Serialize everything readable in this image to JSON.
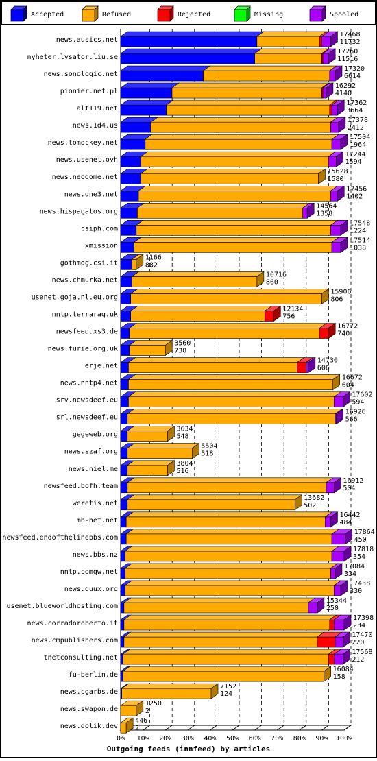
{
  "legend": [
    {
      "name": "Accepted",
      "color": "#0000ff",
      "top": "#3030ff",
      "side": "#00007f"
    },
    {
      "name": "Refused",
      "color": "#ffaa00",
      "top": "#ffbb33",
      "side": "#b07800"
    },
    {
      "name": "Rejected",
      "color": "#ff0000",
      "top": "#ff4040",
      "side": "#a00000"
    },
    {
      "name": "Missing",
      "color": "#00ff00",
      "top": "#40ff40",
      "side": "#00a000"
    },
    {
      "name": "Spooled",
      "color": "#aa00ff",
      "top": "#bb33ff",
      "side": "#6a00a0"
    }
  ],
  "chart_data": {
    "type": "bar",
    "orientation": "horizontal",
    "stacked": true,
    "title": "Outgoing feeds (innfeed) by articles",
    "xlim": [
      0,
      100
    ],
    "x_ticks": [
      "0%",
      "10%",
      "20%",
      "30%",
      "40%",
      "50%",
      "60%",
      "70%",
      "80%",
      "90%",
      "100%"
    ],
    "grid": "dashed vertical lines",
    "legend_position": "top",
    "series_names": [
      "Accepted",
      "Refused",
      "Rejected",
      "Missing",
      "Spooled"
    ],
    "rows": [
      {
        "name": "news.ausics.net",
        "total": "17468",
        "accepted": "11732",
        "segments": [
          61.0,
          28.0,
          1.0,
          0,
          4.0
        ]
      },
      {
        "name": "nyheter.lysator.liu.se",
        "total": "17260",
        "accepted": "11516",
        "segments": [
          60.0,
          30.0,
          0.5,
          0,
          2.5
        ]
      },
      {
        "name": "news.sonologic.net",
        "total": "17320",
        "accepted": "6614",
        "segments": [
          37.0,
          56.5,
          0,
          0,
          2.5
        ]
      },
      {
        "name": "pionier.net.pl",
        "total": "16292",
        "accepted": "4140",
        "segments": [
          23.0,
          67.0,
          0.5,
          0,
          1.5
        ]
      },
      {
        "name": "alt119.net",
        "total": "17362",
        "accepted": "3664",
        "segments": [
          20.5,
          73.0,
          1.0,
          0,
          2.5
        ]
      },
      {
        "name": "news.1d4.us",
        "total": "17378",
        "accepted": "2412",
        "segments": [
          13.5,
          80.5,
          0,
          0,
          3.5
        ]
      },
      {
        "name": "news.tomockey.net",
        "total": "17504",
        "accepted": "1964",
        "segments": [
          11.0,
          83.5,
          0,
          0,
          4.0
        ]
      },
      {
        "name": "news.usenet.ovh",
        "total": "17244",
        "accepted": "1594",
        "segments": [
          9.0,
          84.0,
          0,
          0,
          3.5
        ]
      },
      {
        "name": "news.neodome.net",
        "total": "15628",
        "accepted": "1580",
        "segments": [
          9.0,
          79.5,
          0,
          0,
          0
        ]
      },
      {
        "name": "news.dne3.net",
        "total": "17456",
        "accepted": "1402",
        "segments": [
          8.0,
          86.0,
          0,
          0,
          3.0
        ]
      },
      {
        "name": "news.hispagatos.org",
        "total": "14564",
        "accepted": "1358",
        "segments": [
          7.5,
          74.0,
          0,
          0,
          2.0
        ]
      },
      {
        "name": "csiph.com",
        "total": "17548",
        "accepted": "1224",
        "segments": [
          7.0,
          87.0,
          0,
          0,
          4.5
        ]
      },
      {
        "name": "xmission",
        "total": "17514",
        "accepted": "1038",
        "segments": [
          6.0,
          88.5,
          0,
          0,
          4.0
        ]
      },
      {
        "name": "gothmog.csi.it",
        "total": "1166",
        "accepted": "882",
        "segments": [
          5.0,
          2.0,
          0,
          0,
          0
        ]
      },
      {
        "name": "news.chmurka.net",
        "total": "10716",
        "accepted": "860",
        "segments": [
          5.0,
          56.0,
          0,
          0,
          0
        ]
      },
      {
        "name": "usenet.goja.nl.eu.org",
        "total": "15906",
        "accepted": "806",
        "segments": [
          4.5,
          85.5,
          0,
          0,
          0
        ]
      },
      {
        "name": "nntp.terraraq.uk",
        "total": "12134",
        "accepted": "756",
        "segments": [
          4.5,
          60.0,
          4.0,
          0,
          0
        ]
      },
      {
        "name": "newsfeed.xs3.de",
        "total": "16772",
        "accepted": "740",
        "segments": [
          4.0,
          85.0,
          4.0,
          0,
          0
        ]
      },
      {
        "name": "news.furie.org.uk",
        "total": "3560",
        "accepted": "738",
        "segments": [
          4.0,
          16.0,
          0,
          0,
          0
        ]
      },
      {
        "name": "erje.net",
        "total": "14730",
        "accepted": "606",
        "segments": [
          3.5,
          75.5,
          4.0,
          0,
          1.0
        ]
      },
      {
        "name": "news.nntp4.net",
        "total": "16672",
        "accepted": "604",
        "segments": [
          3.5,
          91.5,
          0,
          0,
          0
        ]
      },
      {
        "name": "srv.newsdeef.eu",
        "total": "17602",
        "accepted": "594",
        "segments": [
          3.5,
          92.0,
          0,
          0,
          4.0
        ]
      },
      {
        "name": "srl.newsdeef.eu",
        "total": "16926",
        "accepted": "566",
        "segments": [
          3.0,
          93.0,
          0,
          0,
          0.5
        ]
      },
      {
        "name": "gegeweb.org",
        "total": "3634",
        "accepted": "548",
        "segments": [
          3.0,
          18.0,
          0,
          0,
          0
        ]
      },
      {
        "name": "news.szaf.org",
        "total": "5504",
        "accepted": "518",
        "segments": [
          3.0,
          29.0,
          0,
          0,
          0
        ]
      },
      {
        "name": "news.niel.me",
        "total": "3804",
        "accepted": "516",
        "segments": [
          3.0,
          18.0,
          0,
          0,
          0
        ]
      },
      {
        "name": "newsfeed.bofh.team",
        "total": "16912",
        "accepted": "504",
        "segments": [
          3.0,
          89.0,
          0,
          0,
          3.5
        ]
      },
      {
        "name": "weretis.net",
        "total": "13682",
        "accepted": "502",
        "segments": [
          3.0,
          75.0,
          0,
          0,
          0
        ]
      },
      {
        "name": "mb-net.net",
        "total": "16442",
        "accepted": "484",
        "segments": [
          2.5,
          89.0,
          0,
          0,
          2.5
        ]
      },
      {
        "name": "newsfeed.endofthelinebbs.com",
        "total": "17864",
        "accepted": "450",
        "segments": [
          2.5,
          92.0,
          0,
          0,
          6.0
        ]
      },
      {
        "name": "news.bbs.nz",
        "total": "17818",
        "accepted": "354",
        "segments": [
          2.0,
          92.5,
          0,
          0,
          5.5
        ]
      },
      {
        "name": "nntp.comgw.net",
        "total": "17084",
        "accepted": "334",
        "segments": [
          2.0,
          92.0,
          0,
          0,
          2.0
        ]
      },
      {
        "name": "news.quux.org",
        "total": "17438",
        "accepted": "330",
        "segments": [
          2.0,
          93.5,
          0,
          0,
          3.0
        ]
      },
      {
        "name": "usenet.blueworldhosting.com",
        "total": "15344",
        "accepted": "250",
        "segments": [
          1.5,
          82.5,
          0,
          0,
          4.0
        ]
      },
      {
        "name": "news.corradoroberto.it",
        "total": "17398",
        "accepted": "234",
        "segments": [
          1.5,
          92.0,
          2.0,
          0,
          4.5
        ]
      },
      {
        "name": "news.cmpublishers.com",
        "total": "17470",
        "accepted": "220",
        "segments": [
          1.5,
          86.5,
          8.0,
          0,
          3.5
        ]
      },
      {
        "name": "tnetconsulting.net",
        "total": "17568",
        "accepted": "212",
        "segments": [
          1.0,
          92.0,
          2.5,
          0,
          4.0
        ]
      },
      {
        "name": "fu-berlin.de",
        "total": "16084",
        "accepted": "158",
        "segments": [
          1.0,
          90.0,
          0,
          0,
          0
        ]
      },
      {
        "name": "news.cgarbs.de",
        "total": "7152",
        "accepted": "124",
        "segments": [
          0.5,
          40.0,
          0,
          0,
          0
        ]
      },
      {
        "name": "news.swapon.de",
        "total": "1250",
        "accepted": "2",
        "segments": [
          0,
          7.0,
          0,
          0,
          0
        ]
      },
      {
        "name": "news.dolik.dev",
        "total": "446",
        "accepted": "2",
        "segments": [
          0,
          2.5,
          0,
          0,
          0
        ]
      }
    ]
  }
}
